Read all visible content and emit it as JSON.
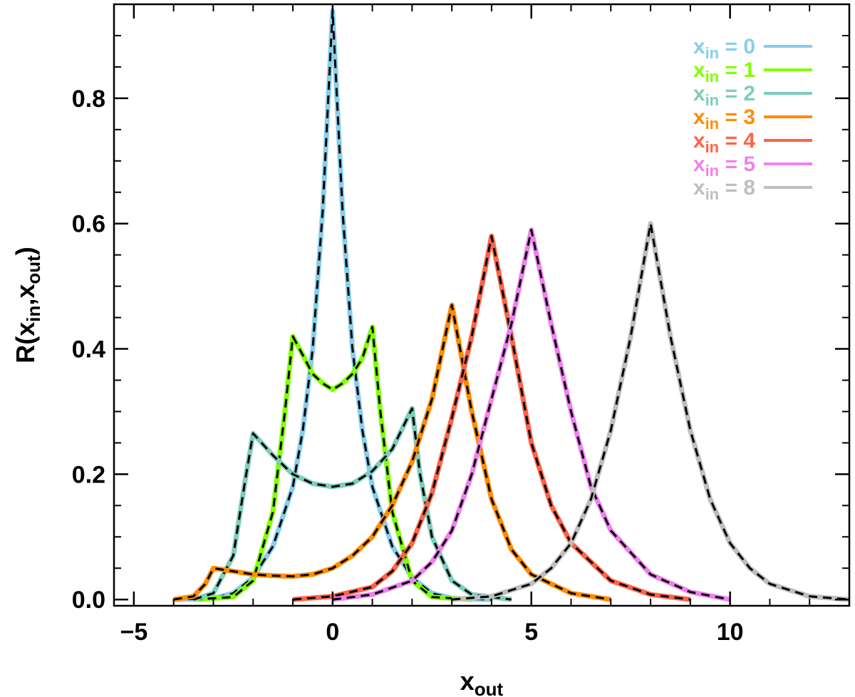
{
  "chart_data": {
    "type": "line",
    "title": "",
    "xlabel": {
      "main": "x",
      "sub": "out"
    },
    "ylabel": {
      "prefix": "R(x",
      "sub1": "in",
      "mid": ",x",
      "sub2": "out",
      "suffix": ")"
    },
    "xlim": [
      -5.5,
      13
    ],
    "ylim": [
      -0.01,
      0.95
    ],
    "xticks": [
      -5,
      0,
      5,
      10
    ],
    "xtick_labels": [
      "−5",
      "0",
      "5",
      "10"
    ],
    "yticks": [
      0.0,
      0.2,
      0.4,
      0.6,
      0.8
    ],
    "ytick_labels": [
      "0.0",
      "0.2",
      "0.4",
      "0.6",
      "0.8"
    ],
    "grid": false,
    "legend_position": "top-right",
    "model_line_style": "black dashed",
    "series": [
      {
        "name": "x_in = 0",
        "legend": {
          "base": "x",
          "sub": "in",
          "rest": " = 0"
        },
        "color": "#87CEEB",
        "x": [
          -4,
          -3,
          -2.5,
          -2,
          -1.5,
          -1,
          -0.75,
          -0.5,
          -0.25,
          0,
          0.25,
          0.5,
          0.75,
          1,
          1.5,
          2,
          2.5,
          3,
          4
        ],
        "y": [
          0,
          0.002,
          0.01,
          0.035,
          0.085,
          0.18,
          0.27,
          0.4,
          0.62,
          0.94,
          0.62,
          0.4,
          0.27,
          0.18,
          0.085,
          0.035,
          0.01,
          0.002,
          0
        ]
      },
      {
        "name": "x_in = 1",
        "legend": {
          "base": "x",
          "sub": "in",
          "rest": " = 1"
        },
        "color": "#7FFF00",
        "x": [
          -3.5,
          -2.5,
          -2,
          -1.5,
          -1.2,
          -1,
          -0.75,
          -0.5,
          -0.25,
          0,
          0.25,
          0.5,
          0.75,
          1,
          1.2,
          1.5,
          2,
          2.5,
          3.5
        ],
        "y": [
          0,
          0.004,
          0.03,
          0.14,
          0.3,
          0.42,
          0.39,
          0.36,
          0.345,
          0.335,
          0.345,
          0.36,
          0.385,
          0.435,
          0.3,
          0.14,
          0.03,
          0.004,
          0
        ]
      },
      {
        "name": "x_in = 2",
        "legend": {
          "base": "x",
          "sub": "in",
          "rest": " = 2"
        },
        "color": "#7FCDBB",
        "x": [
          -3.5,
          -3,
          -2.5,
          -2.2,
          -2,
          -1.5,
          -1,
          -0.5,
          0,
          0.5,
          1,
          1.5,
          2,
          2.2,
          2.5,
          3,
          3.5,
          4.5
        ],
        "y": [
          0,
          0.01,
          0.07,
          0.19,
          0.265,
          0.23,
          0.2,
          0.185,
          0.18,
          0.185,
          0.205,
          0.24,
          0.305,
          0.2,
          0.1,
          0.03,
          0.008,
          0
        ]
      },
      {
        "name": "x_in = 3",
        "legend": {
          "base": "x",
          "sub": "in",
          "rest": " = 3"
        },
        "color": "#FF8C00",
        "x": [
          -4,
          -3.5,
          -3.2,
          -3,
          -2.5,
          -2,
          -1.5,
          -1,
          -0.5,
          0,
          0.5,
          1,
          1.5,
          2,
          2.5,
          3,
          3.5,
          4,
          4.5,
          5,
          6,
          7
        ],
        "y": [
          0,
          0.005,
          0.025,
          0.05,
          0.045,
          0.04,
          0.038,
          0.037,
          0.04,
          0.05,
          0.07,
          0.1,
          0.15,
          0.22,
          0.32,
          0.47,
          0.3,
          0.16,
          0.08,
          0.04,
          0.01,
          0
        ]
      },
      {
        "name": "x_in = 4",
        "legend": {
          "base": "x",
          "sub": "in",
          "rest": " = 4"
        },
        "color": "#FF6347",
        "x": [
          -1,
          0,
          1,
          1.5,
          2,
          2.5,
          3,
          3.5,
          4,
          4.5,
          5,
          5.5,
          6,
          7,
          8,
          9
        ],
        "y": [
          0,
          0.005,
          0.02,
          0.045,
          0.09,
          0.17,
          0.29,
          0.42,
          0.58,
          0.42,
          0.25,
          0.15,
          0.09,
          0.03,
          0.008,
          0
        ]
      },
      {
        "name": "x_in = 5",
        "legend": {
          "base": "x",
          "sub": "in",
          "rest": " = 5"
        },
        "color": "#EE82EE",
        "x": [
          0,
          1,
          2,
          2.5,
          3,
          3.5,
          4,
          4.5,
          5,
          5.5,
          6,
          6.5,
          7,
          8,
          9,
          10
        ],
        "y": [
          0,
          0.008,
          0.03,
          0.06,
          0.11,
          0.2,
          0.32,
          0.44,
          0.59,
          0.44,
          0.3,
          0.18,
          0.11,
          0.04,
          0.012,
          0
        ]
      },
      {
        "name": "x_in = 8",
        "legend": {
          "base": "x",
          "sub": "in",
          "rest": " = 8"
        },
        "color": "#BEBEBE",
        "x": [
          3,
          4,
          5,
          5.5,
          6,
          6.5,
          7,
          7.5,
          8,
          8.5,
          9,
          9.5,
          10,
          10.5,
          11,
          12,
          13
        ],
        "y": [
          0,
          0.005,
          0.025,
          0.05,
          0.09,
          0.16,
          0.27,
          0.42,
          0.6,
          0.42,
          0.27,
          0.16,
          0.09,
          0.05,
          0.025,
          0.005,
          0
        ]
      }
    ]
  }
}
